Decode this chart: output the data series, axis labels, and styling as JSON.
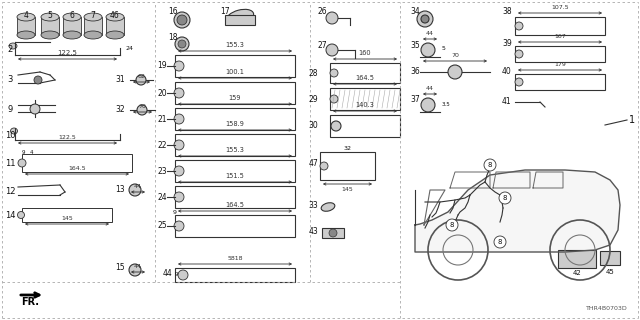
{
  "bg_color": "#f5f5f5",
  "line_color": "#333333",
  "text_color": "#111111",
  "diagram_code": "THR4B0703D",
  "border_dash": "#999999",
  "gray_fill": "#cccccc",
  "dark_gray": "#888888"
}
